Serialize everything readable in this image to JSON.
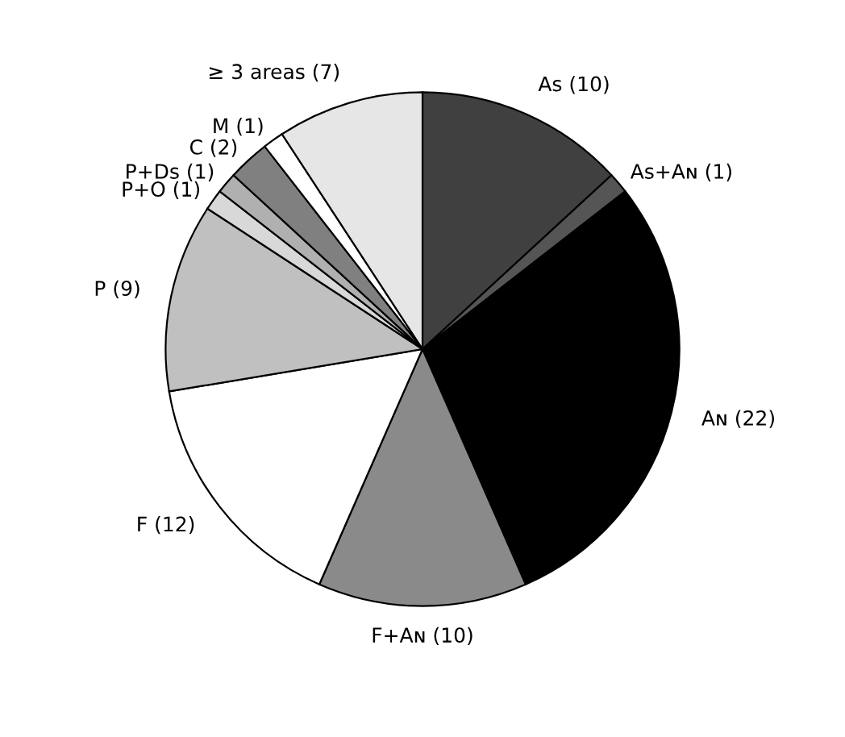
{
  "chart_data": {
    "type": "pie",
    "categories": [
      "Aꜱ",
      "Aꜱ+Aɴ",
      "Aɴ",
      "F+Aɴ",
      "F",
      "P",
      "P+O",
      "P+Dꜱ",
      "C",
      "M",
      "≥ 3 areas"
    ],
    "values": [
      10,
      1,
      22,
      10,
      12,
      9,
      1,
      1,
      2,
      1,
      7
    ],
    "colors": [
      "#404040",
      "#555555",
      "#000000",
      "#8a8a8a",
      "#ffffff",
      "#c0c0c0",
      "#d8d8d8",
      "#b0b0b0",
      "#808080",
      "#ffffff",
      "#e6e6e6"
    ],
    "value_labels": [
      "(10)",
      "(1)",
      "(22)",
      "(10)",
      "(12)",
      "(9)",
      "(1)",
      "(1)",
      "(2)",
      "(1)",
      "(7)"
    ]
  }
}
